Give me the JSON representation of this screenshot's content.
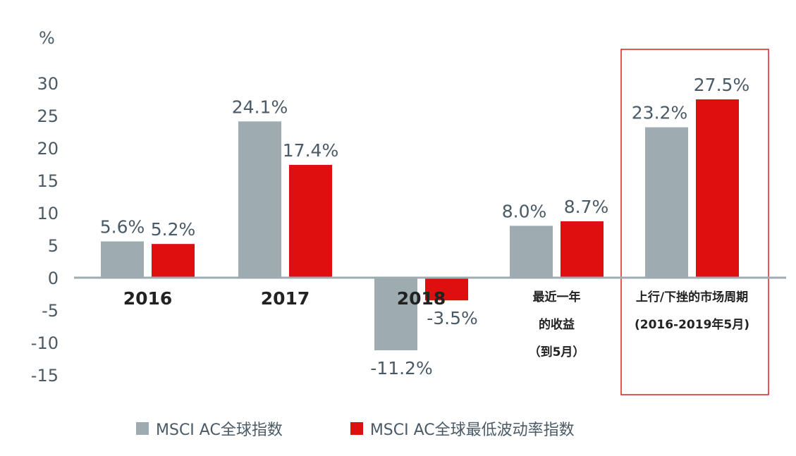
{
  "chart_data": {
    "type": "bar",
    "unit_label": "%",
    "categories": [
      {
        "lines": [
          "2016"
        ],
        "bold_large": true
      },
      {
        "lines": [
          "2017"
        ],
        "bold_large": true
      },
      {
        "lines": [
          "2018"
        ],
        "bold_large": true
      },
      {
        "lines": [
          "最近一年",
          "的收益",
          "（到5月）"
        ],
        "bold_large": false
      },
      {
        "lines": [
          "上行/下挫的市场周期",
          "(2016-2019年5月)"
        ],
        "bold_large": false
      }
    ],
    "series": [
      {
        "name": "MSCI AC全球指数",
        "color": "#9eacb2",
        "values": [
          5.6,
          24.1,
          -11.2,
          8.0,
          23.2
        ],
        "labels": [
          "5.6%",
          "24.1%",
          "-11.2%",
          "8.0%",
          "23.2%"
        ]
      },
      {
        "name": "MSCI AC全球最低波动率指数",
        "color": "#dd0f0f",
        "values": [
          5.2,
          17.4,
          -3.5,
          8.7,
          27.5
        ],
        "labels": [
          "5.2%",
          "17.4%",
          "-3.5%",
          "8.7%",
          "27.5%"
        ]
      }
    ],
    "yticks": [
      30,
      25,
      20,
      15,
      10,
      5,
      0,
      -5,
      -10,
      -15
    ],
    "ytick_labels": [
      "30",
      "25",
      "20",
      "15",
      "10",
      "5",
      "0",
      "-5",
      "-10",
      "-15"
    ],
    "ylim": [
      -15,
      30
    ],
    "grid": false,
    "highlight_category": 4,
    "highlight_color": "#dd1f1f",
    "axis_color": "#9eacb2",
    "text_color": "#4a5a66",
    "legend_position": "bottom"
  }
}
